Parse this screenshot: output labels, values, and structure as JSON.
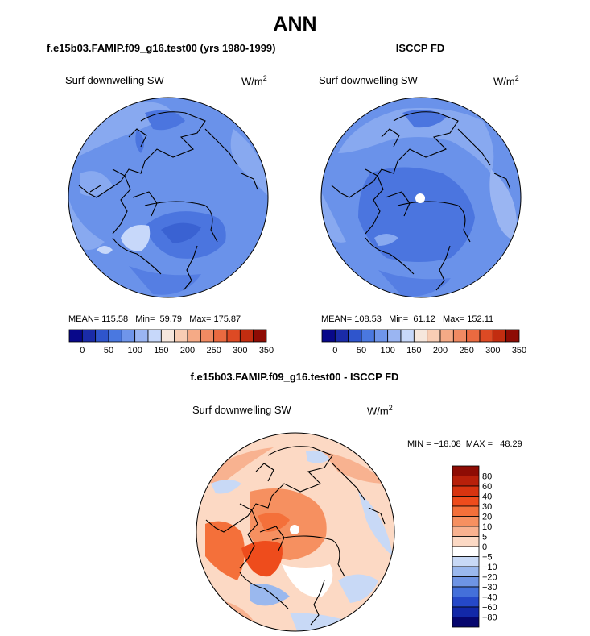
{
  "title": "ANN",
  "chart_data": [
    {
      "type": "heatmap",
      "title": "f.e15b03.FAMIP.f09_g16.test00 (yrs 1980-1999)",
      "field": "Surf downwelling SW",
      "units": "W/m",
      "units_exp": "2",
      "stats": {
        "mean": "115.58",
        "min": "59.79",
        "max": "175.87"
      },
      "stats_text": "MEAN= 115.58   Min=  59.79   Max= 175.87",
      "colorbar": {
        "orientation": "horizontal",
        "ticks": [
          "0",
          "50",
          "100",
          "150",
          "200",
          "250",
          "300",
          "350"
        ],
        "colors": [
          "#08088a",
          "#1a2ba8",
          "#2f55cc",
          "#4a78e0",
          "#6f95ea",
          "#9ab5f2",
          "#c7d8fa",
          "#f6e7dd",
          "#f8cdb4",
          "#f5aa86",
          "#f08a62",
          "#ea6a40",
          "#dd4a24",
          "#c22d10",
          "#8e0c04"
        ]
      }
    },
    {
      "type": "heatmap",
      "title": "ISCCP FD",
      "field": "Surf downwelling SW",
      "units": "W/m",
      "units_exp": "2",
      "stats": {
        "mean": "108.53",
        "min": "61.12",
        "max": "152.11"
      },
      "stats_text": "MEAN= 108.53   Min=  61.12   Max= 152.11",
      "colorbar": {
        "orientation": "horizontal",
        "ticks": [
          "0",
          "50",
          "100",
          "150",
          "200",
          "250",
          "300",
          "350"
        ],
        "colors": [
          "#08088a",
          "#1a2ba8",
          "#2f55cc",
          "#4a78e0",
          "#6f95ea",
          "#9ab5f2",
          "#c7d8fa",
          "#f6e7dd",
          "#f8cdb4",
          "#f5aa86",
          "#f08a62",
          "#ea6a40",
          "#dd4a24",
          "#c22d10",
          "#8e0c04"
        ]
      }
    },
    {
      "type": "heatmap",
      "title": "f.e15b03.FAMIP.f09_g16.test00 - ISCCP FD",
      "field": "Surf downwelling SW",
      "units": "W/m",
      "units_exp": "2",
      "stats": {
        "min": "-18.08",
        "max": "48.29"
      },
      "stats_text": "MIN = −18.08  MAX =   48.29",
      "colorbar": {
        "orientation": "vertical",
        "ticks": [
          "80",
          "60",
          "40",
          "30",
          "20",
          "10",
          "5",
          "0",
          "−5",
          "−10",
          "−20",
          "−30",
          "−40",
          "−60",
          "−80"
        ],
        "colors": [
          "#8e0c04",
          "#b8200a",
          "#d83410",
          "#ee4c1c",
          "#f4703a",
          "#f69060",
          "#f8b290",
          "#fcd9c4",
          "#ffffff",
          "#c8d9f6",
          "#9ab8ee",
          "#6e94e4",
          "#4470da",
          "#2548c8",
          "#1228a8",
          "#06066e"
        ]
      }
    }
  ]
}
